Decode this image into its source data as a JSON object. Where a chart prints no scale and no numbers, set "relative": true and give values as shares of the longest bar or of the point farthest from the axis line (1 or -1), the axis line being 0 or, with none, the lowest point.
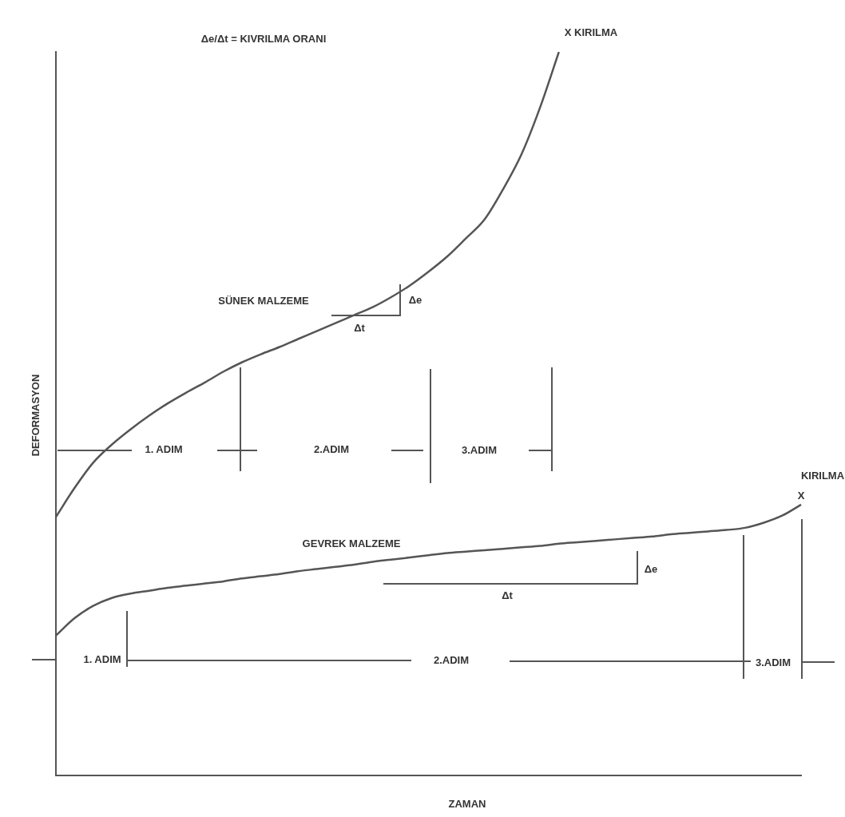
{
  "chart_data": {
    "type": "line",
    "relative": true,
    "xlabel": "ZAMAN",
    "ylabel": "DEFORMASYON",
    "categories": [
      null,
      null,
      null,
      null,
      null,
      null,
      null,
      null,
      null,
      null,
      null,
      null,
      null,
      null,
      null,
      null,
      null,
      null,
      null,
      null,
      null,
      null,
      null,
      null,
      null,
      null,
      null,
      null,
      null,
      null,
      null,
      null,
      null,
      null,
      null,
      null,
      null,
      null,
      null,
      null,
      null
    ],
    "series": [
      {
        "name": "SÜNEK MALZEME",
        "color": "#555555",
        "values": [
          0.357,
          0.397,
          0.432,
          0.457,
          0.478,
          0.497,
          0.514,
          0.529,
          0.543,
          0.558,
          0.571,
          0.582,
          0.592,
          0.603,
          0.614,
          0.625,
          0.636,
          0.647,
          0.661,
          0.677,
          0.696,
          0.717,
          0.742,
          0.768,
          0.81,
          0.859,
          0.924,
          1,
          null,
          null,
          null,
          null,
          null,
          null,
          null,
          null,
          null,
          null,
          null,
          null,
          null
        ]
      },
      {
        "name": "GEVREK MALZEME",
        "color": "#555555",
        "values": [
          0.193,
          0.217,
          0.234,
          0.245,
          0.251,
          0.255,
          0.259,
          0.262,
          0.265,
          0.268,
          0.272,
          0.275,
          0.278,
          0.282,
          0.285,
          0.288,
          0.291,
          0.295,
          0.298,
          0.301,
          0.304,
          0.307,
          0.309,
          0.311,
          0.313,
          0.315,
          0.317,
          0.32,
          0.322,
          0.324,
          0.326,
          0.328,
          0.33,
          0.333,
          0.335,
          0.337,
          0.339,
          0.342,
          0.349,
          0.359,
          0.374
        ]
      }
    ],
    "annotations": [
      "Δe/Δt = KIVRILMA ORANI",
      "X KIRILMA",
      "KIRILMA",
      "X",
      "Δe",
      "Δt",
      "Δe",
      "Δt",
      "1. ADIM",
      "2.ADIM",
      "3.ADIM",
      "1. ADIM",
      "2.ADIM",
      "3.ADIM"
    ],
    "grid": false,
    "legend": false,
    "marker": "none",
    "line_style": "solid"
  }
}
